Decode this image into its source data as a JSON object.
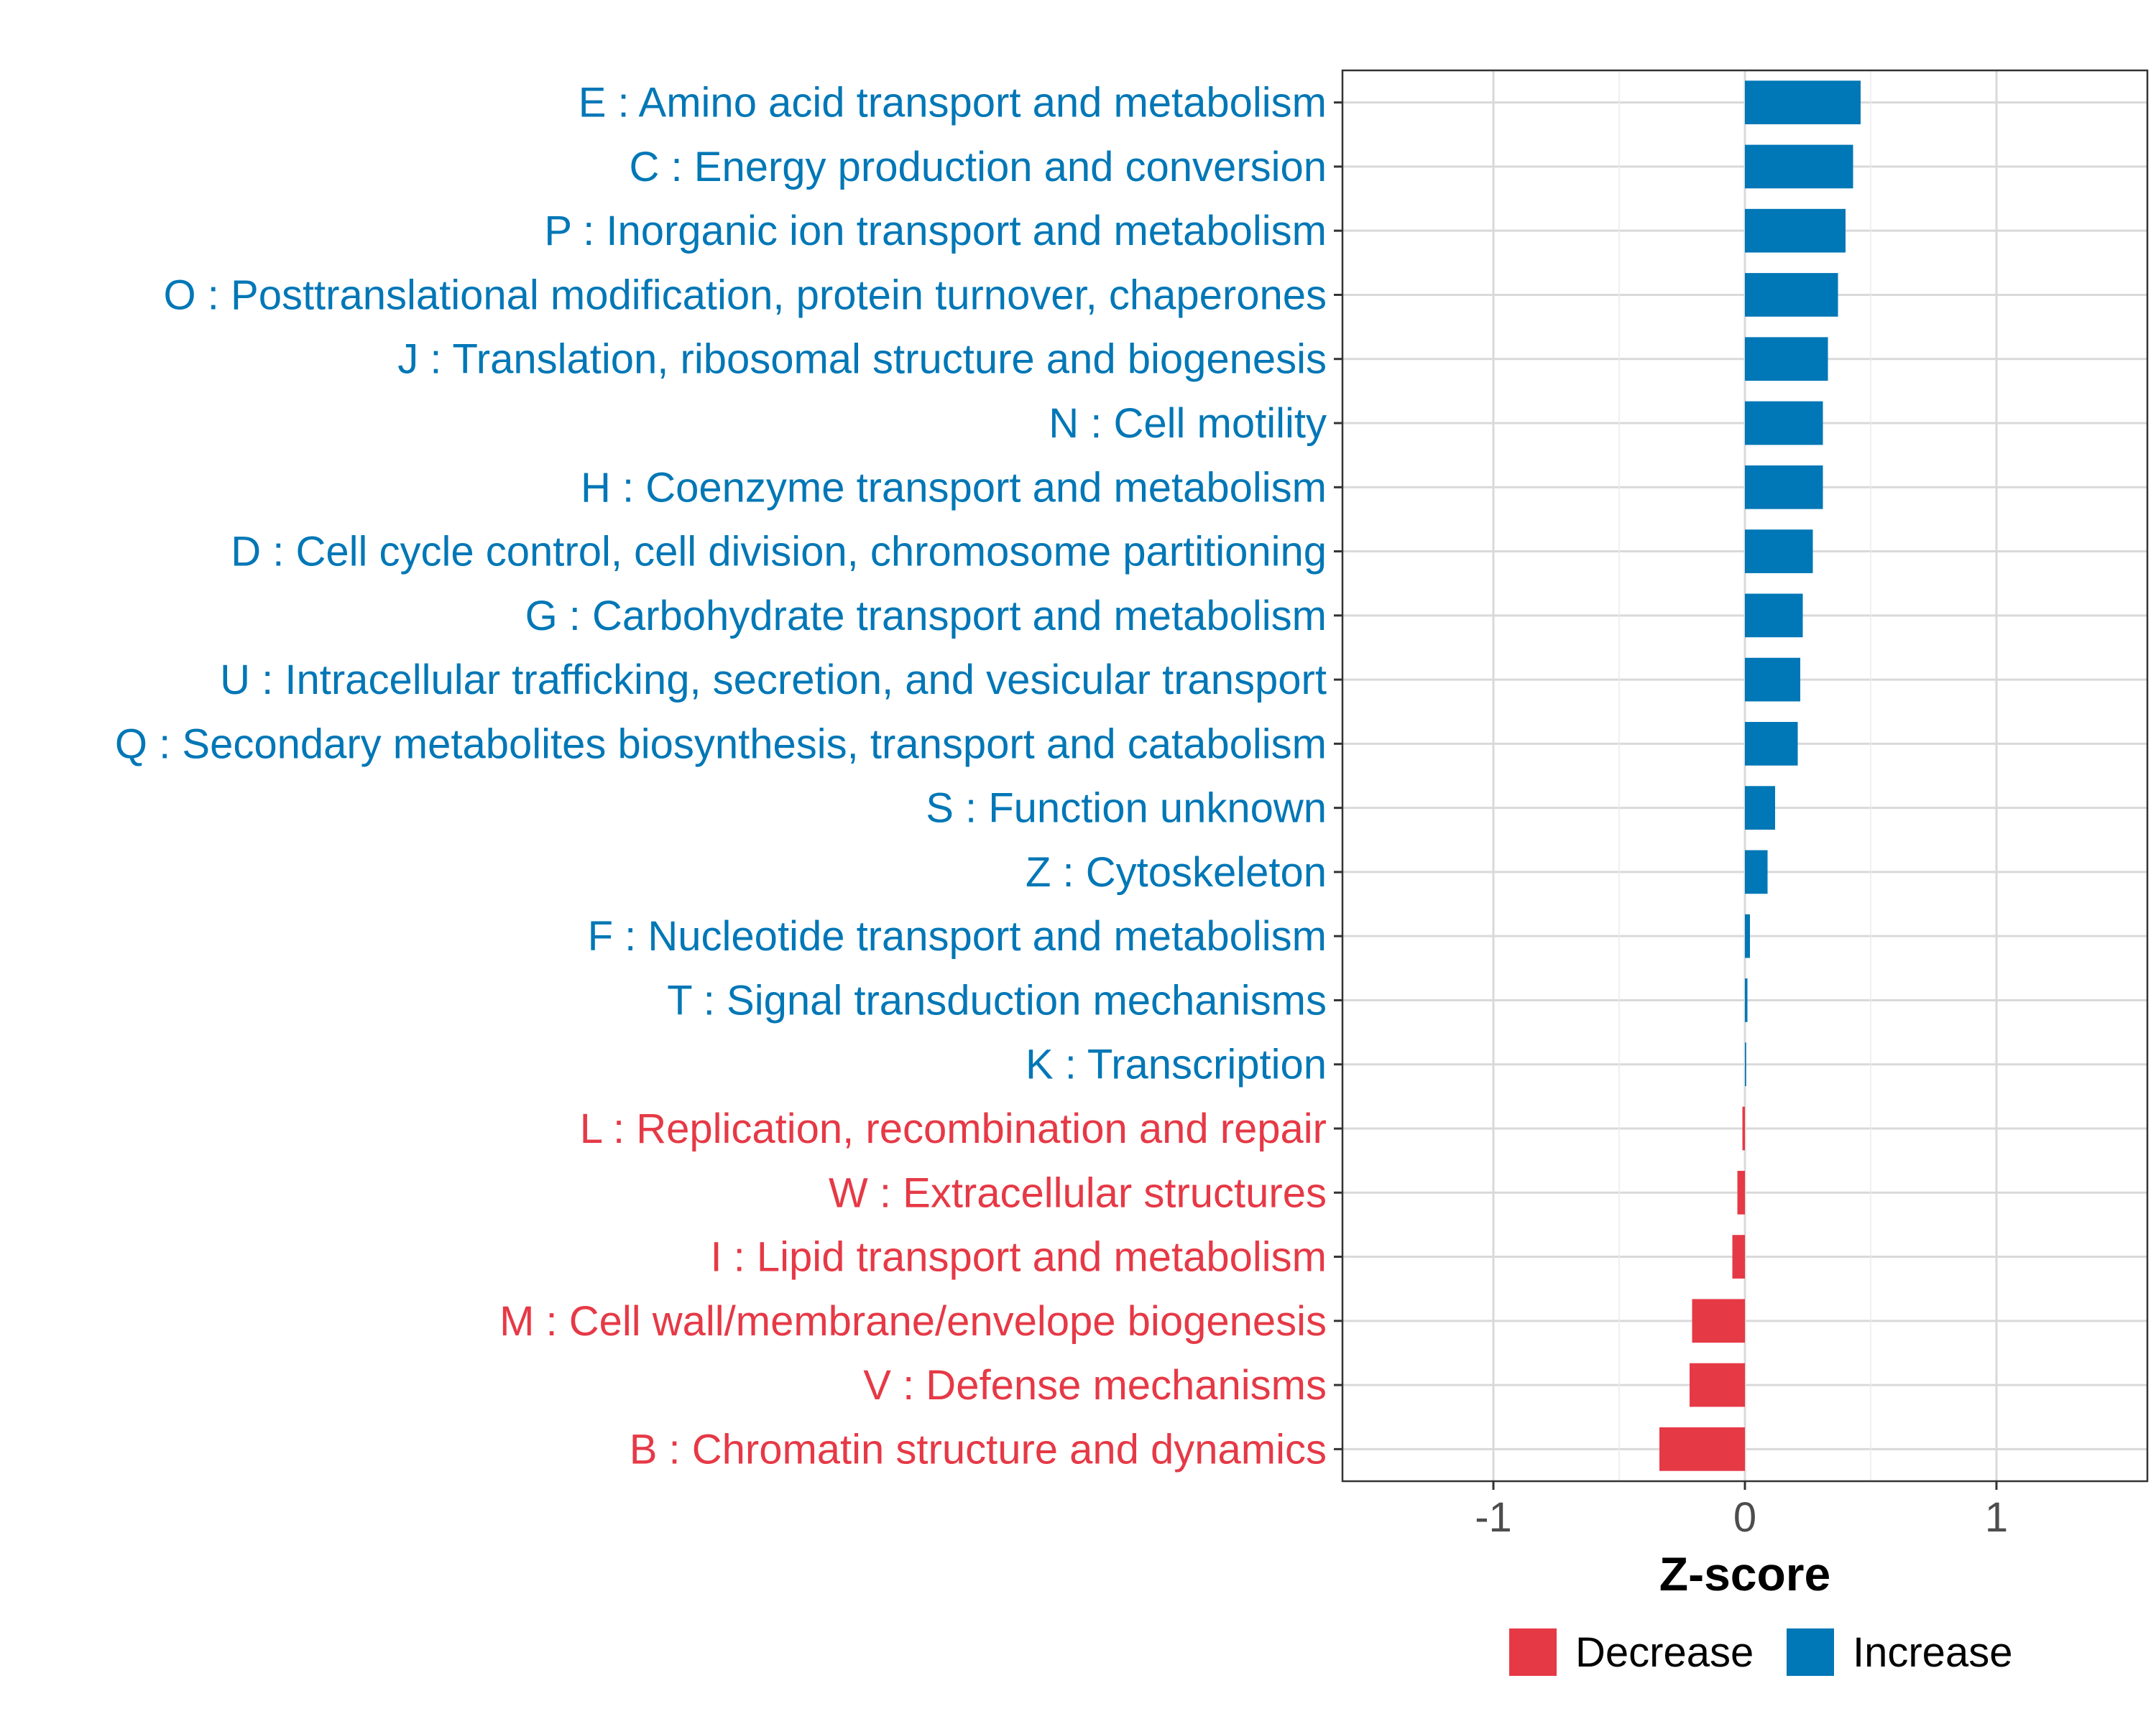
{
  "chart_data": {
    "type": "bar",
    "orientation": "horizontal",
    "xlabel": "Z-score",
    "ylabel": "",
    "xlim": [
      -1.6,
      1.6
    ],
    "xticks": [
      -1,
      0,
      1
    ],
    "xtick_labels": [
      "-1",
      "0",
      "1"
    ],
    "grid": true,
    "legend_position": "bottom",
    "legend": [
      {
        "name": "Decrease",
        "color": "#e63946"
      },
      {
        "name": "Increase",
        "color": "#0077b6"
      }
    ],
    "categories": [
      "E : Amino acid transport and metabolism",
      "C : Energy production and conversion",
      "P : Inorganic ion transport and metabolism",
      "O : Posttranslational modification, protein turnover, chaperones",
      "J : Translation, ribosomal structure and biogenesis",
      "N : Cell motility",
      "H : Coenzyme transport and metabolism",
      "D : Cell cycle control, cell division, chromosome partitioning",
      "G : Carbohydrate transport and metabolism",
      "U : Intracellular trafficking, secretion, and vesicular transport",
      "Q : Secondary metabolites biosynthesis, transport and catabolism",
      "S : Function unknown",
      "Z : Cytoskeleton",
      "F : Nucleotide transport and metabolism",
      "T : Signal transduction mechanisms",
      "K : Transcription",
      "L : Replication, recombination and repair",
      "W : Extracellular structures",
      "I : Lipid transport and metabolism",
      "M : Cell wall/membrane/envelope biogenesis",
      "V : Defense mechanisms",
      "B : Chromatin structure and dynamics"
    ],
    "values": [
      0.46,
      0.43,
      0.4,
      0.37,
      0.33,
      0.31,
      0.31,
      0.27,
      0.23,
      0.22,
      0.21,
      0.12,
      0.09,
      0.02,
      0.01,
      0.005,
      -0.01,
      -0.03,
      -0.05,
      -0.21,
      -0.22,
      -0.34
    ],
    "groups": [
      "Increase",
      "Increase",
      "Increase",
      "Increase",
      "Increase",
      "Increase",
      "Increase",
      "Increase",
      "Increase",
      "Increase",
      "Increase",
      "Increase",
      "Increase",
      "Increase",
      "Increase",
      "Increase",
      "Decrease",
      "Decrease",
      "Decrease",
      "Decrease",
      "Decrease",
      "Decrease"
    ]
  }
}
